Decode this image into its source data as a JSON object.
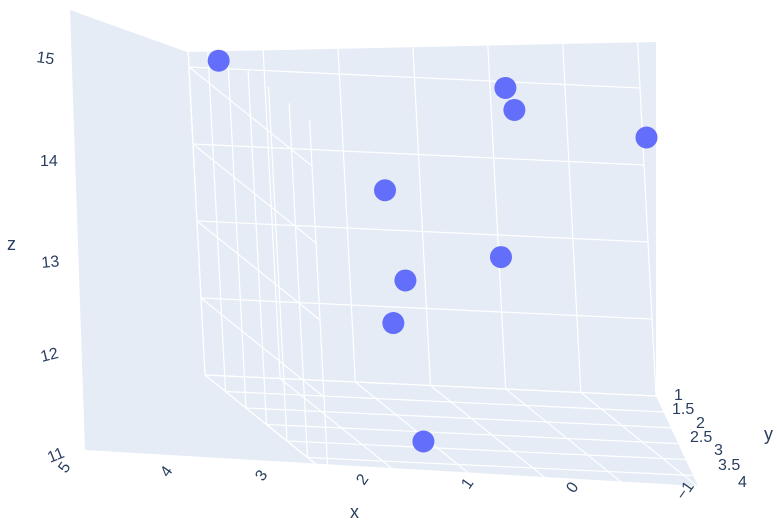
{
  "chart_data": {
    "type": "scatter3d",
    "title": "",
    "xlabel": "x",
    "ylabel": "y",
    "zlabel": "z",
    "x_ticks": [
      "5",
      "4",
      "3",
      "2",
      "1",
      "0",
      "−1"
    ],
    "y_ticks": [
      "1",
      "1.5",
      "2",
      "2.5",
      "3",
      "3.5",
      "4"
    ],
    "z_ticks": [
      "15",
      "14",
      "13",
      "12",
      "11"
    ],
    "xlim": [
      -1,
      5
    ],
    "ylim": [
      1,
      4
    ],
    "zlim": [
      11,
      15.2
    ],
    "grid": true,
    "colors": {
      "background": "#e5ecf6",
      "gridline": "#ffffff",
      "marker": "#636efa",
      "text": "#2a3f5f"
    },
    "points": [
      {
        "x": 4.6,
        "y": 1.0,
        "z": 15.1
      },
      {
        "x": 3.1,
        "y": 2.2,
        "z": 14.0
      },
      {
        "x": 1.6,
        "y": 2.2,
        "z": 13.2
      },
      {
        "x": 3.1,
        "y": 2.6,
        "z": 13.0
      },
      {
        "x": 3.5,
        "y": 3.0,
        "z": 12.6
      },
      {
        "x": 3.6,
        "y": 3.8,
        "z": 11.4
      },
      {
        "x": 0.9,
        "y": 1.2,
        "z": 15.0
      },
      {
        "x": 0.9,
        "y": 1.4,
        "z": 14.8
      },
      {
        "x": -1.0,
        "y": 1.1,
        "z": 14.4
      }
    ]
  }
}
